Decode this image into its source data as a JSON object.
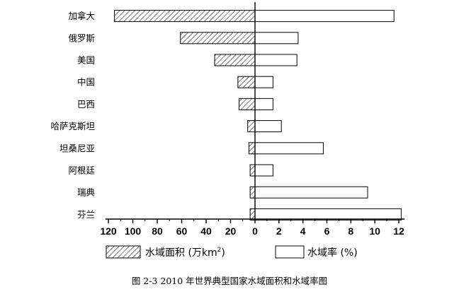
{
  "chart_data": {
    "type": "bar",
    "orientation": "horizontal-diverging",
    "caption": "图 2-3  2010 年世界典型国家水域面积和水域率图",
    "categories": [
      "加拿大",
      "俄罗斯",
      "美国",
      "中国",
      "巴西",
      "哈萨克斯坦",
      "坦桑尼亚",
      "阿根廷",
      "瑞典",
      "芬兰"
    ],
    "series": [
      {
        "name": "水域面积 (万km²)",
        "name_parts": {
          "main": "水域面积 (万km",
          "sup": "2",
          "tail": ")"
        },
        "direction": "left",
        "fill": "hatched",
        "values": [
          115,
          61,
          33,
          14,
          13,
          6,
          5,
          4,
          4,
          4
        ]
      },
      {
        "name": "水域率 (%)",
        "direction": "right",
        "fill": "white",
        "values": [
          11.6,
          3.6,
          3.5,
          1.5,
          1.5,
          2.2,
          5.7,
          1.5,
          9.4,
          12.2
        ]
      }
    ],
    "x_ticks": [
      {
        "value": -120,
        "label": "120"
      },
      {
        "value": -100,
        "label": "100"
      },
      {
        "value": -80,
        "label": "80"
      },
      {
        "value": -60,
        "label": "60"
      },
      {
        "value": -40,
        "label": "40"
      },
      {
        "value": -20,
        "label": "20"
      },
      {
        "value": 0,
        "label": "0"
      },
      {
        "value": 2,
        "label": "2"
      },
      {
        "value": 4,
        "label": "4"
      },
      {
        "value": 6,
        "label": "6"
      },
      {
        "value": 8,
        "label": "8"
      },
      {
        "value": 10,
        "label": "10"
      },
      {
        "value": 12,
        "label": "12"
      }
    ],
    "xlim_left": [
      0,
      120
    ],
    "xlim_right": [
      0,
      12
    ],
    "legend_position": "bottom",
    "grid": false
  }
}
